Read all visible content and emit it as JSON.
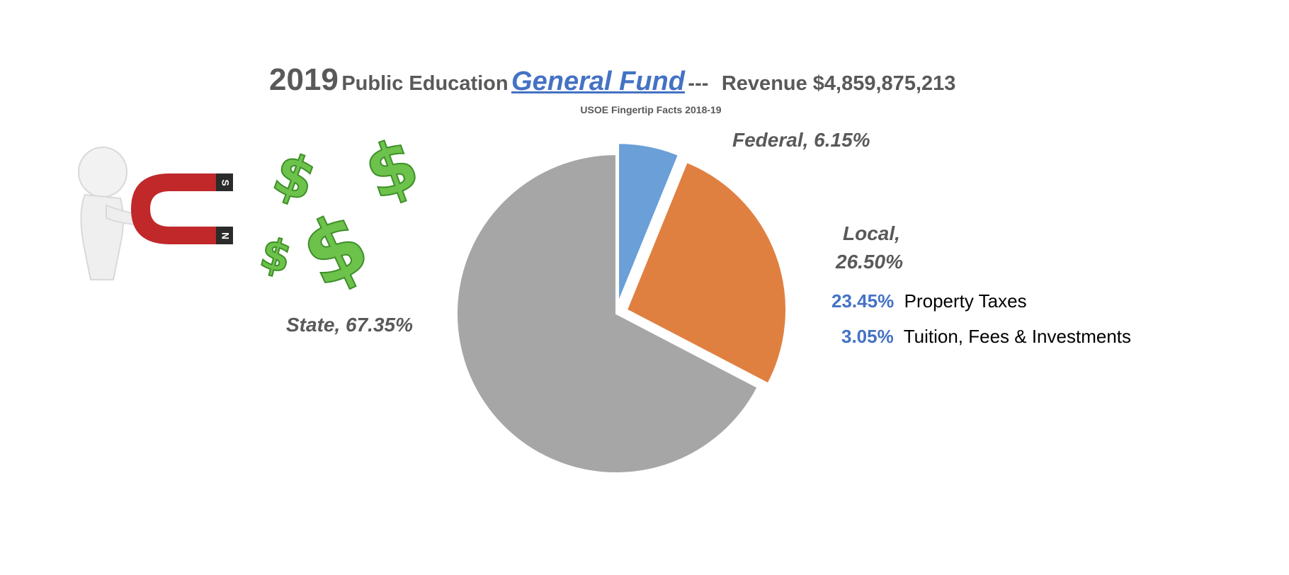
{
  "title": {
    "year": "2019",
    "part1": "Public Education",
    "fund": "General Fund",
    "sep": "---",
    "revenue": "Revenue $4,859,875,213"
  },
  "subtitle": "USOE Fingertip Facts 2018-19",
  "chart_data": {
    "type": "pie",
    "categories": [
      "Federal",
      "Local",
      "State"
    ],
    "values": [
      6.15,
      26.5,
      67.35
    ],
    "colors": [
      "#6a9fd8",
      "#e08040",
      "#a6a6a6"
    ],
    "exploded": [
      "Federal",
      "Local"
    ],
    "labels": [
      "Federal, 6.15%",
      "Local,",
      "26.50%",
      "State, 67.35%"
    ],
    "local_breakdown": [
      {
        "pct": "23.45%",
        "label": "Property Taxes"
      },
      {
        "pct": "3.05%",
        "label": "Tuition, Fees & Investments"
      }
    ]
  },
  "illustration": {
    "magnet_poles": [
      "S",
      "N"
    ]
  },
  "colors": {
    "title": "#595959",
    "accent": "#4472c4",
    "dollar": "#6cc24a"
  },
  "icons": [
    "person-figure-icon",
    "horseshoe-magnet-icon",
    "dollar-sign-icon"
  ]
}
